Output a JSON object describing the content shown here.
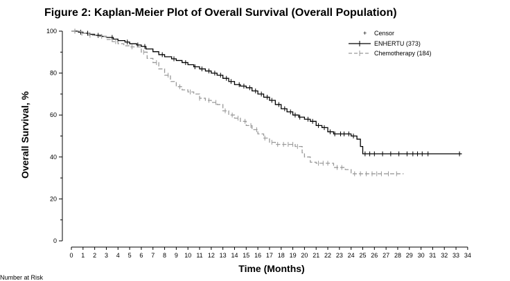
{
  "title": "Figure 2: Kaplan-Meier Plot of Overall Survival (Overall Population)",
  "footnote": "Number at Risk",
  "chart_data": {
    "type": "line",
    "xlabel": "Time (Months)",
    "ylabel": "Overall Survival, %",
    "xlim": [
      0,
      34
    ],
    "ylim": [
      0,
      100
    ],
    "x_ticks": [
      0,
      1,
      2,
      3,
      4,
      5,
      6,
      7,
      8,
      9,
      10,
      11,
      12,
      13,
      14,
      15,
      16,
      17,
      18,
      19,
      20,
      21,
      22,
      23,
      24,
      25,
      26,
      27,
      28,
      29,
      30,
      31,
      32,
      33,
      34
    ],
    "y_ticks": [
      0,
      20,
      40,
      60,
      80,
      100
    ],
    "legend_position": "top-right",
    "legend": {
      "censor_label": "Censor",
      "entries": [
        "ENHERTU (373)",
        "Chemotherapy (184)"
      ]
    },
    "series": [
      {
        "name": "ENHERTU (373)",
        "color": "#000000",
        "dash": "solid",
        "steps": [
          [
            0,
            100
          ],
          [
            0.6,
            99.5
          ],
          [
            1,
            99
          ],
          [
            1.6,
            98.5
          ],
          [
            2,
            98
          ],
          [
            2.6,
            97.5
          ],
          [
            3,
            97
          ],
          [
            3.6,
            96.2
          ],
          [
            4,
            95.5
          ],
          [
            4.6,
            94.8
          ],
          [
            5,
            94
          ],
          [
            5.6,
            93.4
          ],
          [
            6,
            92.7
          ],
          [
            6.4,
            91.5
          ],
          [
            7,
            90.2
          ],
          [
            7.5,
            88.8
          ],
          [
            8,
            87.8
          ],
          [
            8.6,
            86.8
          ],
          [
            9,
            86
          ],
          [
            9.5,
            85
          ],
          [
            10,
            84
          ],
          [
            10.5,
            83
          ],
          [
            11,
            82
          ],
          [
            11.5,
            81
          ],
          [
            12,
            80
          ],
          [
            12.5,
            79
          ],
          [
            13,
            77.5
          ],
          [
            13.5,
            76
          ],
          [
            14,
            74.5
          ],
          [
            14.5,
            73.8
          ],
          [
            15,
            73
          ],
          [
            15.5,
            71.5
          ],
          [
            16,
            70
          ],
          [
            16.5,
            68.5
          ],
          [
            17,
            67
          ],
          [
            17.5,
            65
          ],
          [
            18,
            63
          ],
          [
            18.5,
            61.5
          ],
          [
            19,
            60
          ],
          [
            19.5,
            59
          ],
          [
            20,
            58
          ],
          [
            20.5,
            57
          ],
          [
            21,
            55
          ],
          [
            21.5,
            54
          ],
          [
            22,
            52
          ],
          [
            22.5,
            51
          ],
          [
            23,
            51
          ],
          [
            23.5,
            51
          ],
          [
            24,
            50
          ],
          [
            24.5,
            48.5
          ],
          [
            24.8,
            45
          ],
          [
            25,
            41.5
          ],
          [
            33.5,
            41.5
          ]
        ],
        "censor_x": [
          0.3,
          0.8,
          1.4,
          2.3,
          3.5,
          4.8,
          5.7,
          6.3,
          7.8,
          8.8,
          9.8,
          10.6,
          11.2,
          11.8,
          12.3,
          12.8,
          13.3,
          13.7,
          14.4,
          14.8,
          15.3,
          15.8,
          16.3,
          16.8,
          17.2,
          17.8,
          18.3,
          18.8,
          19.2,
          19.6,
          20.3,
          20.7,
          21.2,
          21.7,
          22.2,
          22.6,
          23.1,
          23.4,
          23.8,
          24.2,
          25.2,
          25.6,
          26,
          26.7,
          27.4,
          28.1,
          28.8,
          29.3,
          29.7,
          30.1,
          30.6,
          33.3
        ]
      },
      {
        "name": "Chemotherapy (184)",
        "color": "#999999",
        "dash": "dashed",
        "steps": [
          [
            0,
            100
          ],
          [
            0.8,
            99
          ],
          [
            1.5,
            98
          ],
          [
            2.2,
            97.5
          ],
          [
            3,
            96
          ],
          [
            3.5,
            95
          ],
          [
            4,
            94
          ],
          [
            4.5,
            93
          ],
          [
            5,
            92.5
          ],
          [
            6,
            90
          ],
          [
            6.5,
            87
          ],
          [
            7,
            85
          ],
          [
            7.5,
            82
          ],
          [
            8,
            79
          ],
          [
            8.5,
            76
          ],
          [
            9,
            73.5
          ],
          [
            9.5,
            72
          ],
          [
            10,
            71
          ],
          [
            10.5,
            70
          ],
          [
            11,
            68
          ],
          [
            11.5,
            67
          ],
          [
            12,
            66
          ],
          [
            12.5,
            65
          ],
          [
            13,
            62
          ],
          [
            13.5,
            60
          ],
          [
            14,
            58.5
          ],
          [
            14.5,
            57
          ],
          [
            15,
            55
          ],
          [
            15.5,
            53
          ],
          [
            16,
            51
          ],
          [
            16.5,
            49
          ],
          [
            17,
            47
          ],
          [
            17.5,
            46
          ],
          [
            18,
            46
          ],
          [
            18.5,
            46
          ],
          [
            19.2,
            45
          ],
          [
            19.8,
            42
          ],
          [
            20,
            40
          ],
          [
            20.5,
            37.5
          ],
          [
            21,
            37
          ],
          [
            22,
            37
          ],
          [
            22.5,
            35
          ],
          [
            23,
            35
          ],
          [
            23.5,
            34
          ],
          [
            24,
            32
          ],
          [
            28.5,
            32
          ]
        ],
        "censor_x": [
          0.3,
          0.9,
          1.6,
          2.6,
          3.8,
          5.2,
          6.2,
          7.3,
          8.3,
          9.3,
          10.2,
          11,
          11.8,
          12.4,
          13.2,
          13.8,
          14.3,
          14.9,
          15.4,
          15.9,
          16.6,
          17.2,
          17.7,
          18.2,
          18.6,
          19,
          19.4,
          21.2,
          21.6,
          22,
          22.8,
          23.2,
          24.3,
          24.8,
          25.3,
          25.8,
          26.2,
          26.6,
          27.2,
          27.9
        ]
      }
    ]
  }
}
